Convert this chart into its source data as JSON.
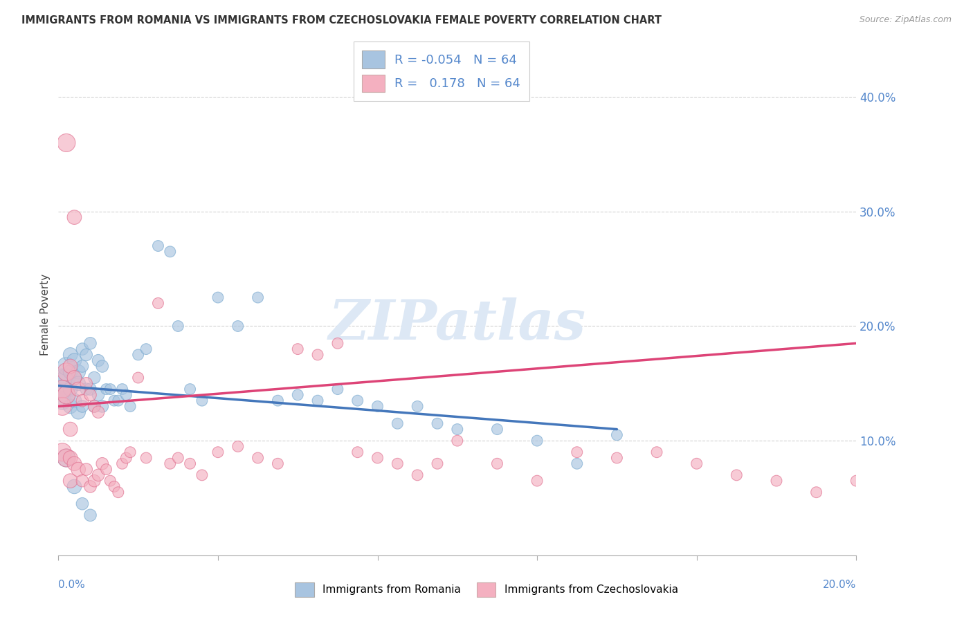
{
  "title": "IMMIGRANTS FROM ROMANIA VS IMMIGRANTS FROM CZECHOSLOVAKIA FEMALE POVERTY CORRELATION CHART",
  "source": "Source: ZipAtlas.com",
  "ylabel": "Female Poverty",
  "xlim": [
    0.0,
    0.2
  ],
  "ylim": [
    0.0,
    0.42
  ],
  "yticks": [
    0.1,
    0.2,
    0.3,
    0.4
  ],
  "ytick_labels": [
    "10.0%",
    "20.0%",
    "30.0%",
    "40.0%"
  ],
  "r_romania": -0.054,
  "r_czech": 0.178,
  "n_romania": 64,
  "n_czech": 64,
  "romania_color": "#a8c4e0",
  "romania_edge_color": "#7aaad0",
  "czech_color": "#f4b0c0",
  "czech_edge_color": "#e07090",
  "trendline_romania_color": "#4477bb",
  "trendline_czech_color": "#dd4477",
  "watermark_color": "#dde8f5",
  "romania_x": [
    0.001,
    0.001,
    0.001,
    0.002,
    0.002,
    0.002,
    0.003,
    0.003,
    0.003,
    0.003,
    0.004,
    0.004,
    0.004,
    0.005,
    0.005,
    0.005,
    0.006,
    0.006,
    0.006,
    0.007,
    0.007,
    0.008,
    0.008,
    0.009,
    0.009,
    0.01,
    0.01,
    0.011,
    0.011,
    0.012,
    0.013,
    0.014,
    0.015,
    0.016,
    0.017,
    0.018,
    0.02,
    0.022,
    0.025,
    0.028,
    0.03,
    0.033,
    0.036,
    0.04,
    0.045,
    0.05,
    0.055,
    0.06,
    0.065,
    0.07,
    0.075,
    0.08,
    0.085,
    0.09,
    0.095,
    0.1,
    0.11,
    0.12,
    0.13,
    0.14,
    0.002,
    0.004,
    0.006,
    0.008
  ],
  "romania_y": [
    0.145,
    0.135,
    0.155,
    0.155,
    0.165,
    0.14,
    0.175,
    0.16,
    0.145,
    0.13,
    0.155,
    0.17,
    0.135,
    0.16,
    0.15,
    0.125,
    0.165,
    0.18,
    0.13,
    0.175,
    0.145,
    0.185,
    0.145,
    0.155,
    0.13,
    0.17,
    0.14,
    0.165,
    0.13,
    0.145,
    0.145,
    0.135,
    0.135,
    0.145,
    0.14,
    0.13,
    0.175,
    0.18,
    0.27,
    0.265,
    0.2,
    0.145,
    0.135,
    0.225,
    0.2,
    0.225,
    0.135,
    0.14,
    0.135,
    0.145,
    0.135,
    0.13,
    0.115,
    0.13,
    0.115,
    0.11,
    0.11,
    0.1,
    0.08,
    0.105,
    0.085,
    0.06,
    0.045,
    0.035
  ],
  "czech_x": [
    0.001,
    0.001,
    0.001,
    0.002,
    0.002,
    0.002,
    0.003,
    0.003,
    0.003,
    0.003,
    0.004,
    0.004,
    0.005,
    0.005,
    0.006,
    0.006,
    0.007,
    0.007,
    0.008,
    0.008,
    0.009,
    0.009,
    0.01,
    0.01,
    0.011,
    0.012,
    0.013,
    0.014,
    0.015,
    0.016,
    0.017,
    0.018,
    0.02,
    0.022,
    0.025,
    0.028,
    0.03,
    0.033,
    0.036,
    0.04,
    0.045,
    0.05,
    0.055,
    0.06,
    0.065,
    0.07,
    0.075,
    0.08,
    0.085,
    0.09,
    0.095,
    0.1,
    0.11,
    0.12,
    0.13,
    0.14,
    0.15,
    0.16,
    0.17,
    0.18,
    0.19,
    0.2,
    0.002,
    0.004
  ],
  "czech_y": [
    0.145,
    0.13,
    0.09,
    0.16,
    0.14,
    0.085,
    0.165,
    0.11,
    0.085,
    0.065,
    0.155,
    0.08,
    0.145,
    0.075,
    0.135,
    0.065,
    0.15,
    0.075,
    0.14,
    0.06,
    0.13,
    0.065,
    0.125,
    0.07,
    0.08,
    0.075,
    0.065,
    0.06,
    0.055,
    0.08,
    0.085,
    0.09,
    0.155,
    0.085,
    0.22,
    0.08,
    0.085,
    0.08,
    0.07,
    0.09,
    0.095,
    0.085,
    0.08,
    0.18,
    0.175,
    0.185,
    0.09,
    0.085,
    0.08,
    0.07,
    0.08,
    0.1,
    0.08,
    0.065,
    0.09,
    0.085,
    0.09,
    0.08,
    0.07,
    0.065,
    0.055,
    0.065,
    0.36,
    0.295
  ],
  "trendline_rom_x0": 0.0,
  "trendline_rom_x1": 0.14,
  "trendline_rom_y0": 0.148,
  "trendline_rom_y1": 0.11,
  "trendline_cz_x0": 0.0,
  "trendline_cz_x1": 0.2,
  "trendline_cz_y0": 0.13,
  "trendline_cz_y1": 0.185
}
